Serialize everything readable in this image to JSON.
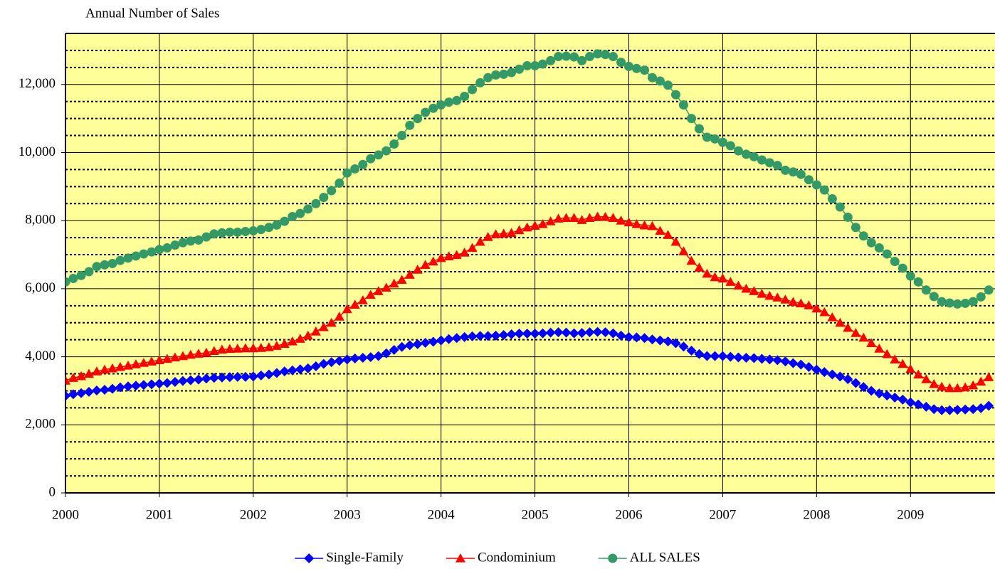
{
  "chart_data": {
    "type": "line",
    "title": "Annual Number of Sales",
    "x": [
      2000,
      2000.083,
      2000.167,
      2000.25,
      2000.333,
      2000.417,
      2000.5,
      2000.583,
      2000.667,
      2000.75,
      2000.833,
      2000.917,
      2001,
      2001.083,
      2001.167,
      2001.25,
      2001.333,
      2001.417,
      2001.5,
      2001.583,
      2001.667,
      2001.75,
      2001.833,
      2001.917,
      2002,
      2002.083,
      2002.167,
      2002.25,
      2002.333,
      2002.417,
      2002.5,
      2002.583,
      2002.667,
      2002.75,
      2002.833,
      2002.917,
      2003,
      2003.083,
      2003.167,
      2003.25,
      2003.333,
      2003.417,
      2003.5,
      2003.583,
      2003.667,
      2003.75,
      2003.833,
      2003.917,
      2004,
      2004.083,
      2004.167,
      2004.25,
      2004.333,
      2004.417,
      2004.5,
      2004.583,
      2004.667,
      2004.75,
      2004.833,
      2004.917,
      2005,
      2005.083,
      2005.167,
      2005.25,
      2005.333,
      2005.417,
      2005.5,
      2005.583,
      2005.667,
      2005.75,
      2005.833,
      2005.917,
      2006,
      2006.083,
      2006.167,
      2006.25,
      2006.333,
      2006.417,
      2006.5,
      2006.583,
      2006.667,
      2006.75,
      2006.833,
      2006.917,
      2007,
      2007.083,
      2007.167,
      2007.25,
      2007.333,
      2007.417,
      2007.5,
      2007.583,
      2007.667,
      2007.75,
      2007.833,
      2007.917,
      2008,
      2008.083,
      2008.167,
      2008.25,
      2008.333,
      2008.417,
      2008.5,
      2008.583,
      2008.667,
      2008.75,
      2008.833,
      2008.917,
      2009,
      2009.083,
      2009.167,
      2009.25,
      2009.333,
      2009.417,
      2009.5,
      2009.583,
      2009.667,
      2009.75,
      2009.833
    ],
    "series": [
      {
        "name": "Single-Family",
        "color": "#0000ff",
        "marker": "diamond",
        "values": [
          2850,
          2900,
          2930,
          2970,
          3010,
          3030,
          3060,
          3100,
          3130,
          3150,
          3170,
          3190,
          3210,
          3230,
          3260,
          3290,
          3310,
          3330,
          3360,
          3380,
          3390,
          3400,
          3410,
          3410,
          3420,
          3450,
          3480,
          3520,
          3570,
          3600,
          3630,
          3660,
          3720,
          3790,
          3840,
          3880,
          3920,
          3950,
          3970,
          3990,
          4020,
          4100,
          4200,
          4290,
          4340,
          4370,
          4410,
          4440,
          4480,
          4520,
          4550,
          4580,
          4600,
          4610,
          4610,
          4620,
          4640,
          4660,
          4680,
          4680,
          4680,
          4690,
          4710,
          4720,
          4710,
          4690,
          4700,
          4720,
          4730,
          4720,
          4690,
          4620,
          4580,
          4570,
          4550,
          4510,
          4480,
          4450,
          4400,
          4300,
          4180,
          4080,
          4020,
          4020,
          4020,
          4000,
          3980,
          3970,
          3960,
          3940,
          3920,
          3900,
          3860,
          3810,
          3770,
          3700,
          3620,
          3550,
          3480,
          3420,
          3340,
          3230,
          3110,
          3000,
          2920,
          2860,
          2800,
          2740,
          2660,
          2600,
          2530,
          2460,
          2430,
          2430,
          2440,
          2450,
          2460,
          2490,
          2560
        ]
      },
      {
        "name": "Condominium",
        "color": "#ff0000",
        "marker": "triangle",
        "values": [
          3300,
          3380,
          3430,
          3500,
          3570,
          3620,
          3660,
          3700,
          3740,
          3780,
          3820,
          3860,
          3900,
          3940,
          3980,
          4020,
          4060,
          4090,
          4120,
          4170,
          4210,
          4230,
          4240,
          4250,
          4250,
          4260,
          4280,
          4320,
          4380,
          4450,
          4530,
          4620,
          4740,
          4870,
          5000,
          5180,
          5400,
          5530,
          5660,
          5820,
          5930,
          6030,
          6150,
          6260,
          6410,
          6560,
          6700,
          6800,
          6900,
          6950,
          6990,
          7060,
          7200,
          7380,
          7520,
          7600,
          7620,
          7640,
          7720,
          7800,
          7850,
          7900,
          7980,
          8060,
          8080,
          8080,
          8020,
          8080,
          8120,
          8110,
          8080,
          8000,
          7950,
          7900,
          7860,
          7840,
          7700,
          7580,
          7380,
          7100,
          6820,
          6620,
          6440,
          6340,
          6300,
          6200,
          6090,
          6000,
          5930,
          5850,
          5790,
          5740,
          5680,
          5610,
          5570,
          5510,
          5420,
          5310,
          5160,
          5000,
          4850,
          4700,
          4560,
          4400,
          4240,
          4080,
          3920,
          3790,
          3640,
          3480,
          3340,
          3200,
          3120,
          3080,
          3080,
          3100,
          3160,
          3270,
          3400
        ]
      },
      {
        "name": "ALL SALES",
        "color": "#339966",
        "marker": "circle",
        "values": [
          6200,
          6300,
          6390,
          6500,
          6650,
          6700,
          6740,
          6830,
          6900,
          6960,
          7020,
          7080,
          7150,
          7200,
          7280,
          7350,
          7400,
          7430,
          7520,
          7610,
          7640,
          7660,
          7660,
          7680,
          7700,
          7740,
          7800,
          7870,
          7980,
          8120,
          8210,
          8340,
          8500,
          8680,
          8880,
          9100,
          9400,
          9520,
          9650,
          9820,
          9930,
          10050,
          10250,
          10500,
          10800,
          11000,
          11180,
          11300,
          11400,
          11480,
          11530,
          11650,
          11850,
          12050,
          12200,
          12280,
          12300,
          12350,
          12450,
          12550,
          12550,
          12600,
          12700,
          12820,
          12830,
          12810,
          12700,
          12820,
          12900,
          12880,
          12820,
          12650,
          12530,
          12470,
          12420,
          12200,
          12100,
          11980,
          11700,
          11400,
          11000,
          10700,
          10450,
          10400,
          10300,
          10200,
          10050,
          9950,
          9880,
          9780,
          9700,
          9620,
          9480,
          9430,
          9360,
          9200,
          9050,
          8900,
          8640,
          8400,
          8100,
          7800,
          7550,
          7350,
          7200,
          7020,
          6800,
          6600,
          6370,
          6200,
          5960,
          5770,
          5620,
          5580,
          5550,
          5570,
          5620,
          5760,
          5960
        ]
      }
    ],
    "xlim": [
      2000,
      2009.9
    ],
    "xticks": [
      2000,
      2001,
      2002,
      2003,
      2004,
      2005,
      2006,
      2007,
      2008,
      2009
    ],
    "ylim": [
      0,
      13500
    ],
    "yticks": [
      0,
      {
        "value": 2000,
        "label": "2,000"
      },
      {
        "value": 4000,
        "label": "4,000"
      },
      {
        "value": 6000,
        "label": "6,000"
      },
      {
        "value": 8000,
        "label": "8,000"
      },
      {
        "value": 10000,
        "label": "10,000"
      },
      {
        "value": 12000,
        "label": "12,000"
      }
    ],
    "grid": true,
    "minor_grid": 500,
    "plot_background": "#ffff99",
    "legend": "bottom"
  }
}
